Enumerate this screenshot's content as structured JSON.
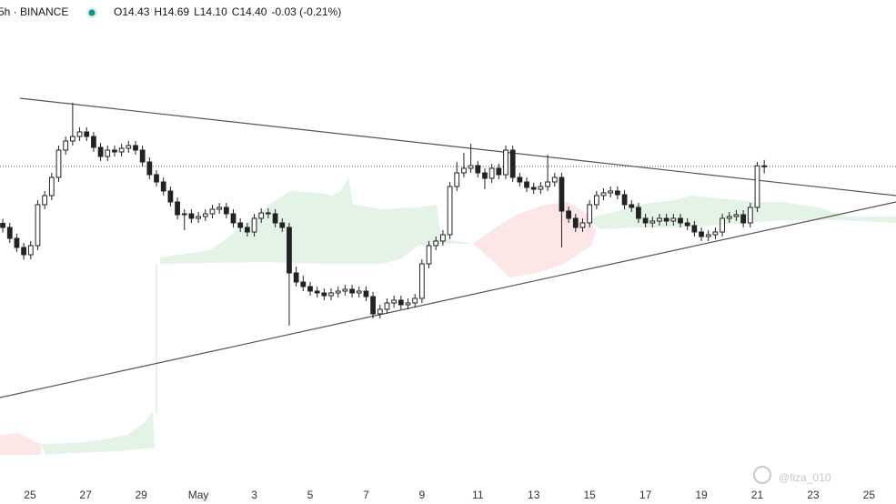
{
  "chart_data": {
    "type": "candlestick",
    "symbol_info": "5h · BINANCE",
    "legend": [
      "O14.43",
      "H14.69",
      "L14.10",
      "C14.40",
      "-0.03 (-0.21%)"
    ],
    "watermark": "@fiza_010",
    "xlim": [
      -0.4,
      127.86
    ],
    "ylim": [
      0.52,
      21.72
    ],
    "xticks": [
      {
        "value": 3.9,
        "label": "25"
      },
      {
        "value": 11.85,
        "label": "27"
      },
      {
        "value": 19.8,
        "label": "29"
      },
      {
        "value": 28,
        "label": "May"
      },
      {
        "value": 36,
        "label": "3"
      },
      {
        "value": 44,
        "label": "5"
      },
      {
        "value": 52,
        "label": "7"
      },
      {
        "value": 60,
        "label": "9"
      },
      {
        "value": 68,
        "label": "11"
      },
      {
        "value": 76,
        "label": "13"
      },
      {
        "value": 84,
        "label": "15"
      },
      {
        "value": 92,
        "label": "17"
      },
      {
        "value": 100,
        "label": "19"
      },
      {
        "value": 108,
        "label": "21"
      },
      {
        "value": 116,
        "label": "23"
      },
      {
        "value": 124,
        "label": "25"
      }
    ],
    "up_color": "#ffffff",
    "down_color": "#222222",
    "outline_color": "#222222",
    "candles": [
      [
        11.9,
        12.1,
        11.5,
        11.72
      ],
      [
        11.72,
        11.92,
        11.04,
        11.24
      ],
      [
        11.24,
        11.44,
        10.64,
        10.84
      ],
      [
        10.84,
        11.04,
        10.3,
        10.52
      ],
      [
        10.52,
        11.12,
        10.32,
        10.92
      ],
      [
        10.92,
        12.92,
        10.72,
        12.72
      ],
      [
        12.72,
        13.32,
        12.52,
        13.12
      ],
      [
        13.12,
        14.12,
        12.92,
        13.92
      ],
      [
        13.92,
        15.32,
        13.72,
        15.12
      ],
      [
        15.12,
        15.72,
        14.92,
        15.52
      ],
      [
        15.52,
        17.2,
        15.32,
        15.72
      ],
      [
        15.72,
        16.12,
        15.52,
        15.92
      ],
      [
        15.92,
        16.12,
        15.52,
        15.72
      ],
      [
        15.72,
        15.92,
        15.04,
        15.24
      ],
      [
        15.24,
        15.44,
        14.64,
        14.84
      ],
      [
        14.84,
        15.32,
        14.64,
        15.12
      ],
      [
        15.12,
        15.32,
        14.84,
        15.04
      ],
      [
        15.04,
        15.4,
        14.84,
        15.2
      ],
      [
        15.2,
        15.52,
        15.0,
        15.32
      ],
      [
        15.32,
        15.52,
        14.92,
        15.12
      ],
      [
        15.12,
        15.32,
        14.4,
        14.6
      ],
      [
        14.6,
        14.8,
        13.84,
        14.04
      ],
      [
        14.04,
        14.24,
        13.52,
        13.72
      ],
      [
        13.72,
        13.92,
        13.12,
        13.32
      ],
      [
        13.32,
        13.52,
        12.64,
        12.84
      ],
      [
        12.84,
        13.04,
        12.08,
        12.28
      ],
      [
        12.28,
        12.52,
        11.6,
        12.32
      ],
      [
        12.32,
        12.52,
        11.92,
        12.12
      ],
      [
        12.12,
        12.4,
        11.92,
        12.2
      ],
      [
        12.2,
        12.52,
        12.0,
        12.32
      ],
      [
        12.32,
        12.72,
        12.12,
        12.52
      ],
      [
        12.52,
        12.8,
        12.32,
        12.6
      ],
      [
        12.6,
        12.8,
        12.12,
        12.32
      ],
      [
        12.32,
        12.52,
        11.72,
        11.92
      ],
      [
        11.92,
        12.12,
        11.52,
        11.72
      ],
      [
        11.72,
        11.92,
        11.32,
        11.52
      ],
      [
        11.52,
        12.32,
        11.32,
        12.12
      ],
      [
        12.12,
        12.56,
        11.92,
        12.36
      ],
      [
        12.36,
        12.56,
        12.12,
        12.32
      ],
      [
        12.32,
        12.52,
        11.72,
        11.92
      ],
      [
        11.92,
        12.12,
        11.52,
        11.72
      ],
      [
        11.72,
        11.92,
        7.4,
        9.72
      ],
      [
        9.72,
        10.0,
        9.12,
        9.32
      ],
      [
        9.32,
        9.6,
        8.92,
        9.12
      ],
      [
        9.12,
        9.32,
        8.72,
        8.92
      ],
      [
        8.92,
        9.12,
        8.64,
        8.84
      ],
      [
        8.84,
        9.04,
        8.52,
        8.72
      ],
      [
        8.72,
        9.04,
        8.52,
        8.84
      ],
      [
        8.84,
        9.12,
        8.64,
        8.92
      ],
      [
        8.92,
        9.2,
        8.72,
        9.0
      ],
      [
        9.0,
        9.2,
        8.64,
        8.84
      ],
      [
        8.84,
        9.12,
        8.64,
        8.92
      ],
      [
        8.92,
        9.12,
        8.48,
        8.68
      ],
      [
        8.68,
        8.88,
        7.72,
        7.92
      ],
      [
        7.92,
        8.32,
        7.72,
        8.12
      ],
      [
        8.12,
        8.6,
        7.92,
        8.4
      ],
      [
        8.4,
        8.72,
        8.2,
        8.52
      ],
      [
        8.52,
        8.72,
        8.12,
        8.32
      ],
      [
        8.32,
        8.6,
        8.12,
        8.4
      ],
      [
        8.4,
        8.8,
        8.2,
        8.6
      ],
      [
        8.6,
        10.32,
        8.4,
        10.12
      ],
      [
        10.12,
        11.12,
        9.92,
        10.92
      ],
      [
        10.92,
        11.32,
        10.72,
        11.12
      ],
      [
        11.12,
        11.6,
        10.92,
        11.4
      ],
      [
        11.4,
        13.72,
        11.2,
        13.52
      ],
      [
        13.52,
        14.6,
        13.32,
        14.12
      ],
      [
        14.12,
        15.0,
        13.92,
        14.32
      ],
      [
        14.32,
        15.4,
        14.12,
        14.44
      ],
      [
        14.44,
        14.64,
        13.92,
        14.12
      ],
      [
        14.12,
        14.32,
        13.4,
        13.88
      ],
      [
        13.88,
        14.52,
        13.68,
        14.32
      ],
      [
        14.32,
        14.52,
        13.84,
        14.04
      ],
      [
        14.04,
        15.32,
        13.84,
        15.12
      ],
      [
        15.12,
        15.32,
        13.72,
        13.92
      ],
      [
        13.92,
        14.12,
        13.52,
        13.72
      ],
      [
        13.72,
        13.92,
        13.28,
        13.48
      ],
      [
        13.48,
        13.68,
        13.2,
        13.4
      ],
      [
        13.4,
        13.72,
        13.2,
        13.52
      ],
      [
        13.52,
        14.92,
        13.32,
        13.72
      ],
      [
        13.72,
        14.12,
        13.52,
        13.92
      ],
      [
        13.92,
        14.12,
        10.84,
        12.44
      ],
      [
        12.44,
        12.64,
        11.92,
        12.12
      ],
      [
        12.12,
        12.32,
        11.52,
        11.72
      ],
      [
        11.72,
        12.12,
        11.52,
        11.92
      ],
      [
        11.92,
        12.92,
        11.72,
        12.72
      ],
      [
        12.72,
        13.32,
        12.52,
        13.12
      ],
      [
        13.12,
        13.44,
        12.92,
        13.24
      ],
      [
        13.24,
        13.52,
        13.04,
        13.32
      ],
      [
        13.32,
        13.52,
        12.96,
        13.16
      ],
      [
        13.16,
        13.36,
        12.52,
        12.72
      ],
      [
        12.72,
        12.92,
        12.4,
        12.6
      ],
      [
        12.6,
        12.8,
        11.92,
        12.12
      ],
      [
        12.12,
        12.32,
        11.72,
        11.92
      ],
      [
        11.92,
        12.2,
        11.72,
        12.0
      ],
      [
        12.0,
        12.32,
        11.8,
        12.12
      ],
      [
        12.12,
        12.32,
        11.8,
        12.0
      ],
      [
        12.0,
        12.32,
        11.8,
        12.12
      ],
      [
        12.12,
        12.32,
        11.72,
        11.92
      ],
      [
        11.92,
        12.12,
        11.6,
        11.8
      ],
      [
        11.8,
        12.0,
        11.32,
        11.52
      ],
      [
        11.52,
        11.72,
        11.12,
        11.32
      ],
      [
        11.32,
        11.6,
        11.12,
        11.4
      ],
      [
        11.4,
        11.72,
        11.2,
        11.52
      ],
      [
        11.52,
        12.32,
        11.32,
        12.12
      ],
      [
        12.12,
        12.4,
        11.92,
        12.2
      ],
      [
        12.2,
        12.48,
        12.0,
        12.28
      ],
      [
        12.28,
        12.48,
        11.72,
        11.92
      ],
      [
        11.92,
        12.8,
        11.72,
        12.6
      ],
      [
        12.6,
        14.6,
        12.4,
        14.43
      ],
      [
        14.43,
        14.69,
        14.1,
        14.4
      ]
    ]
  }
}
